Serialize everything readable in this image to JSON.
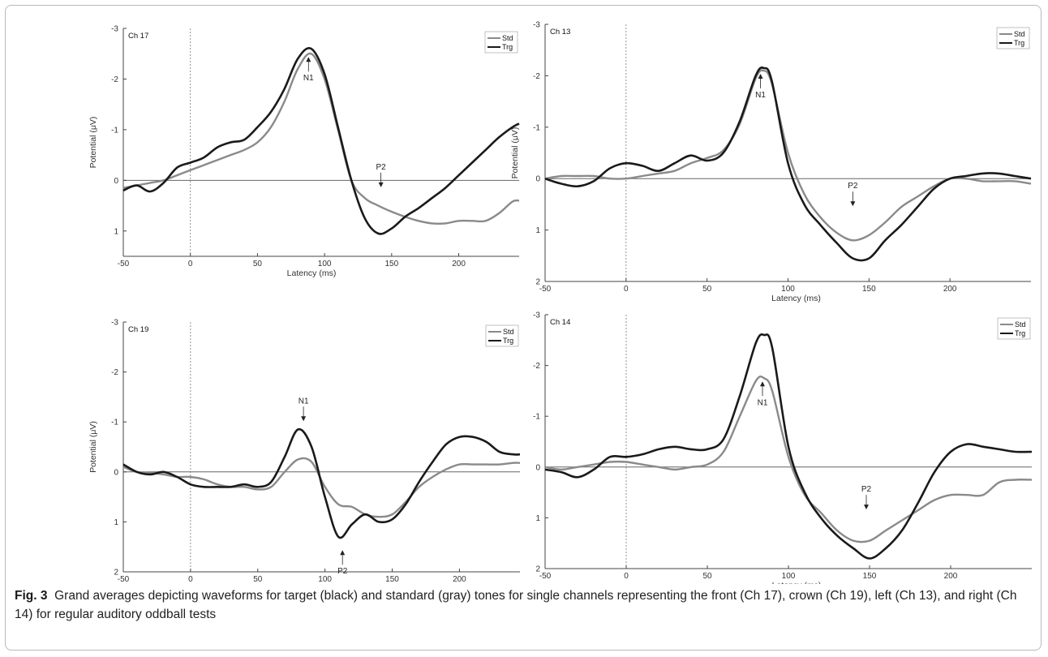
{
  "colors": {
    "std": "#8a8a8a",
    "trg": "#1a1a1a",
    "axis": "#444444",
    "zero_line": "#666666"
  },
  "caption": {
    "label": "Fig. 3",
    "text": "Grand averages depicting waveforms for target (black) and standard (gray) tones for single channels representing the front (Ch 17), crown (Ch 19), left (Ch 13), and right (Ch 14) for regular auditory oddball tests"
  },
  "chart_data": [
    {
      "type": "line",
      "channel": "Ch 17",
      "xlabel": "Latency (ms)",
      "ylabel": "Potential (μV)",
      "xlim": [
        -50,
        245
      ],
      "ylim": [
        -3,
        1.5
      ],
      "y_inverted": true,
      "xticks": [
        -50,
        0,
        50,
        100,
        150,
        200
      ],
      "yticks": [
        -3,
        -2,
        -1,
        0,
        1
      ],
      "legend": [
        "Std",
        "Trg"
      ],
      "legend_position": "top-right",
      "series": [
        {
          "name": "Std",
          "x": [
            -50,
            -40,
            -30,
            -20,
            -10,
            0,
            10,
            20,
            30,
            40,
            50,
            60,
            70,
            80,
            90,
            100,
            110,
            120,
            130,
            140,
            150,
            160,
            170,
            180,
            190,
            200,
            210,
            220,
            230,
            240,
            245
          ],
          "y": [
            0.15,
            0.1,
            0.05,
            0.0,
            -0.1,
            -0.2,
            -0.3,
            -0.4,
            -0.5,
            -0.6,
            -0.75,
            -1.05,
            -1.55,
            -2.2,
            -2.5,
            -2.0,
            -1.0,
            0.0,
            0.35,
            0.5,
            0.62,
            0.72,
            0.8,
            0.85,
            0.85,
            0.8,
            0.8,
            0.8,
            0.65,
            0.42,
            0.4
          ]
        },
        {
          "name": "Trg",
          "x": [
            -50,
            -40,
            -30,
            -20,
            -10,
            0,
            10,
            20,
            30,
            40,
            50,
            60,
            70,
            80,
            90,
            100,
            110,
            120,
            130,
            140,
            150,
            160,
            170,
            180,
            190,
            200,
            210,
            220,
            230,
            240,
            245
          ],
          "y": [
            0.2,
            0.1,
            0.22,
            0.05,
            -0.25,
            -0.35,
            -0.45,
            -0.65,
            -0.75,
            -0.8,
            -1.05,
            -1.35,
            -1.8,
            -2.4,
            -2.6,
            -2.1,
            -1.05,
            0.0,
            0.75,
            1.05,
            0.95,
            0.72,
            0.55,
            0.35,
            0.15,
            -0.1,
            -0.35,
            -0.6,
            -0.85,
            -1.05,
            -1.12
          ]
        }
      ],
      "annotations": [
        {
          "label": "N1",
          "x": 88,
          "y": -2.5
        },
        {
          "label": "P2",
          "x": 142,
          "y": 0.2
        }
      ]
    },
    {
      "type": "line",
      "channel": "Ch 13",
      "xlabel": "Latency (ms)",
      "ylabel": "Potential (μV)",
      "xlim": [
        -50,
        250
      ],
      "ylim": [
        -3,
        2
      ],
      "y_inverted": true,
      "xticks": [
        -50,
        0,
        50,
        100,
        150,
        200
      ],
      "yticks": [
        -3,
        -2,
        -1,
        0,
        1,
        2
      ],
      "legend": [
        "Std",
        "Trg"
      ],
      "legend_position": "top-right",
      "series": [
        {
          "name": "Std",
          "x": [
            -50,
            -40,
            -30,
            -20,
            -10,
            0,
            10,
            20,
            30,
            40,
            50,
            60,
            70,
            80,
            85,
            90,
            100,
            110,
            120,
            130,
            140,
            150,
            160,
            170,
            180,
            190,
            200,
            210,
            220,
            230,
            240,
            250
          ],
          "y": [
            0.0,
            -0.05,
            -0.05,
            -0.05,
            0.0,
            0.0,
            -0.05,
            -0.1,
            -0.15,
            -0.3,
            -0.4,
            -0.55,
            -1.05,
            -1.95,
            -2.1,
            -1.85,
            -0.5,
            0.3,
            0.75,
            1.05,
            1.2,
            1.1,
            0.85,
            0.55,
            0.35,
            0.15,
            0.0,
            0.0,
            0.05,
            0.05,
            0.05,
            0.1
          ]
        },
        {
          "name": "Trg",
          "x": [
            -50,
            -40,
            -30,
            -20,
            -10,
            0,
            10,
            20,
            30,
            40,
            50,
            60,
            70,
            80,
            85,
            90,
            100,
            110,
            120,
            130,
            140,
            150,
            160,
            170,
            180,
            190,
            200,
            210,
            220,
            230,
            240,
            250
          ],
          "y": [
            0.0,
            0.1,
            0.15,
            0.05,
            -0.2,
            -0.3,
            -0.25,
            -0.15,
            -0.3,
            -0.45,
            -0.35,
            -0.5,
            -1.1,
            -2.0,
            -2.15,
            -1.9,
            -0.3,
            0.5,
            0.9,
            1.25,
            1.55,
            1.55,
            1.2,
            0.9,
            0.55,
            0.2,
            0.0,
            -0.05,
            -0.1,
            -0.1,
            -0.05,
            0.0
          ]
        }
      ],
      "annotations": [
        {
          "label": "N1",
          "x": 83,
          "y": -2.1
        },
        {
          "label": "P2",
          "x": 140,
          "y": 0.6
        }
      ]
    },
    {
      "type": "line",
      "channel": "Ch 19",
      "xlabel": "Latency (ms)",
      "ylabel": "Potential (μV)",
      "xlim": [
        -50,
        245
      ],
      "ylim": [
        -3,
        2
      ],
      "y_inverted": true,
      "xticks": [
        -50,
        0,
        50,
        100,
        150,
        200
      ],
      "yticks": [
        -3,
        -2,
        -1,
        0,
        1,
        2
      ],
      "legend": [
        "Std",
        "Trg"
      ],
      "legend_position": "top-right",
      "series": [
        {
          "name": "Std",
          "x": [
            -50,
            -40,
            -30,
            -20,
            -10,
            0,
            10,
            20,
            30,
            40,
            50,
            60,
            70,
            80,
            90,
            100,
            110,
            120,
            130,
            140,
            150,
            160,
            170,
            180,
            190,
            200,
            210,
            220,
            230,
            240,
            245
          ],
          "y": [
            -0.1,
            0.0,
            0.02,
            0.05,
            0.1,
            0.1,
            0.15,
            0.25,
            0.3,
            0.3,
            0.35,
            0.3,
            0.0,
            -0.25,
            -0.2,
            0.3,
            0.65,
            0.7,
            0.85,
            0.9,
            0.85,
            0.6,
            0.3,
            0.1,
            -0.05,
            -0.15,
            -0.15,
            -0.15,
            -0.15,
            -0.18,
            -0.18
          ]
        },
        {
          "name": "Trg",
          "x": [
            -50,
            -40,
            -30,
            -20,
            -10,
            0,
            10,
            20,
            30,
            40,
            50,
            60,
            70,
            80,
            90,
            100,
            110,
            120,
            130,
            140,
            150,
            160,
            170,
            180,
            190,
            200,
            210,
            220,
            230,
            240,
            245
          ],
          "y": [
            -0.15,
            0.0,
            0.05,
            0.0,
            0.1,
            0.25,
            0.3,
            0.3,
            0.3,
            0.25,
            0.3,
            0.2,
            -0.3,
            -0.85,
            -0.5,
            0.5,
            1.3,
            1.05,
            0.85,
            1.0,
            0.95,
            0.65,
            0.2,
            -0.2,
            -0.55,
            -0.7,
            -0.7,
            -0.6,
            -0.4,
            -0.35,
            -0.35
          ]
        }
      ],
      "annotations": [
        {
          "label": "N1",
          "x": 84,
          "y": -0.95
        },
        {
          "label": "P2",
          "x": 113,
          "y": 1.5
        }
      ]
    },
    {
      "type": "line",
      "channel": "Ch 14",
      "xlabel": "Latency (ms)",
      "ylabel": "",
      "xlim": [
        -50,
        250
      ],
      "ylim": [
        -3,
        2
      ],
      "y_inverted": true,
      "xticks": [
        -50,
        0,
        50,
        100,
        150,
        200
      ],
      "yticks": [
        -3,
        -2,
        -1,
        0,
        1,
        2
      ],
      "legend": [
        "Std",
        "Trg"
      ],
      "legend_position": "top-right",
      "series": [
        {
          "name": "Std",
          "x": [
            -50,
            -40,
            -30,
            -20,
            -10,
            0,
            10,
            20,
            30,
            40,
            50,
            60,
            70,
            80,
            85,
            90,
            100,
            110,
            120,
            130,
            140,
            150,
            160,
            170,
            180,
            190,
            200,
            210,
            220,
            230,
            240,
            250
          ],
          "y": [
            0.0,
            0.05,
            0.0,
            -0.05,
            -0.1,
            -0.1,
            -0.05,
            0.0,
            0.05,
            0.0,
            -0.05,
            -0.3,
            -1.0,
            -1.7,
            -1.75,
            -1.5,
            -0.2,
            0.55,
            0.9,
            1.25,
            1.45,
            1.45,
            1.25,
            1.05,
            0.85,
            0.65,
            0.55,
            0.55,
            0.55,
            0.3,
            0.25,
            0.25
          ]
        },
        {
          "name": "Trg",
          "x": [
            -50,
            -40,
            -30,
            -20,
            -10,
            0,
            10,
            20,
            30,
            40,
            50,
            60,
            70,
            80,
            85,
            90,
            100,
            110,
            120,
            130,
            140,
            150,
            160,
            170,
            180,
            190,
            200,
            210,
            220,
            230,
            240,
            250
          ],
          "y": [
            0.05,
            0.1,
            0.2,
            0.05,
            -0.2,
            -0.2,
            -0.25,
            -0.35,
            -0.4,
            -0.35,
            -0.35,
            -0.55,
            -1.4,
            -2.45,
            -2.6,
            -2.35,
            -0.4,
            0.5,
            1.0,
            1.35,
            1.6,
            1.8,
            1.6,
            1.25,
            0.7,
            0.1,
            -0.3,
            -0.45,
            -0.4,
            -0.35,
            -0.3,
            -0.3
          ]
        }
      ],
      "annotations": [
        {
          "label": "N1",
          "x": 84,
          "y": -1.75
        },
        {
          "label": "P2",
          "x": 148,
          "y": 0.9
        }
      ]
    }
  ]
}
